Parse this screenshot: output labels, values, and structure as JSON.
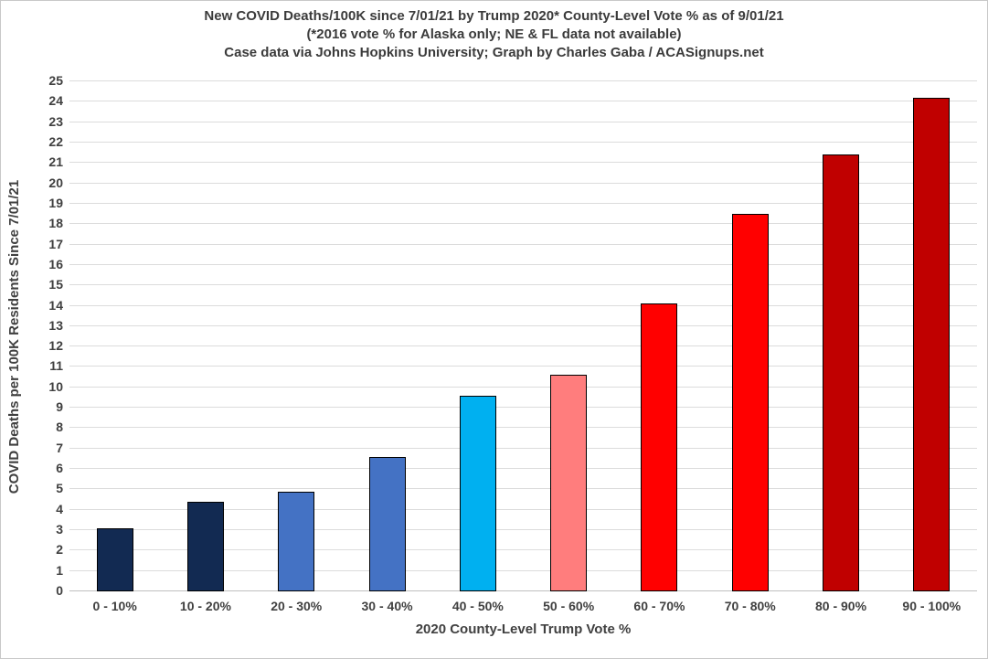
{
  "chart_data": {
    "type": "bar",
    "title": "New COVID Deaths/100K since 7/01/21 by Trump 2020* County-Level Vote % as of 9/01/21",
    "subtitle": "(*2016 vote % for Alaska only; NE & FL data not available)",
    "attribution": "Case data via Johns Hopkins University; Graph by Charles Gaba / ACASignups.net",
    "categories": [
      "0 - 10%",
      "10 - 20%",
      "20 - 30%",
      "30 - 40%",
      "40 - 50%",
      "50 - 60%",
      "60 - 70%",
      "70 - 80%",
      "80 - 90%",
      "90 - 100%"
    ],
    "values": [
      3.1,
      4.4,
      4.9,
      6.6,
      9.6,
      10.6,
      14.1,
      18.5,
      21.4,
      24.2
    ],
    "bar_colors": [
      "#122A52",
      "#122A52",
      "#4472C4",
      "#4472C4",
      "#00B0F0",
      "#FF7D7D",
      "#FF0000",
      "#FF0000",
      "#C00000",
      "#C00000"
    ],
    "xlabel": "2020 County-Level Trump Vote %",
    "ylabel": "COVID Deaths per 100K Residents Since 7/01/21",
    "ylim": [
      0,
      25
    ],
    "ytick_step": 1,
    "grid": true,
    "legend": "none"
  },
  "colors": {
    "background": "#FFFFFF",
    "frame_border": "#C8C8C8",
    "gridline": "#DCDCDC",
    "axis_line": "#BFBFBF",
    "title_text": "#3B3B3B",
    "axis_text": "#404040",
    "bar_border": "#000000"
  }
}
